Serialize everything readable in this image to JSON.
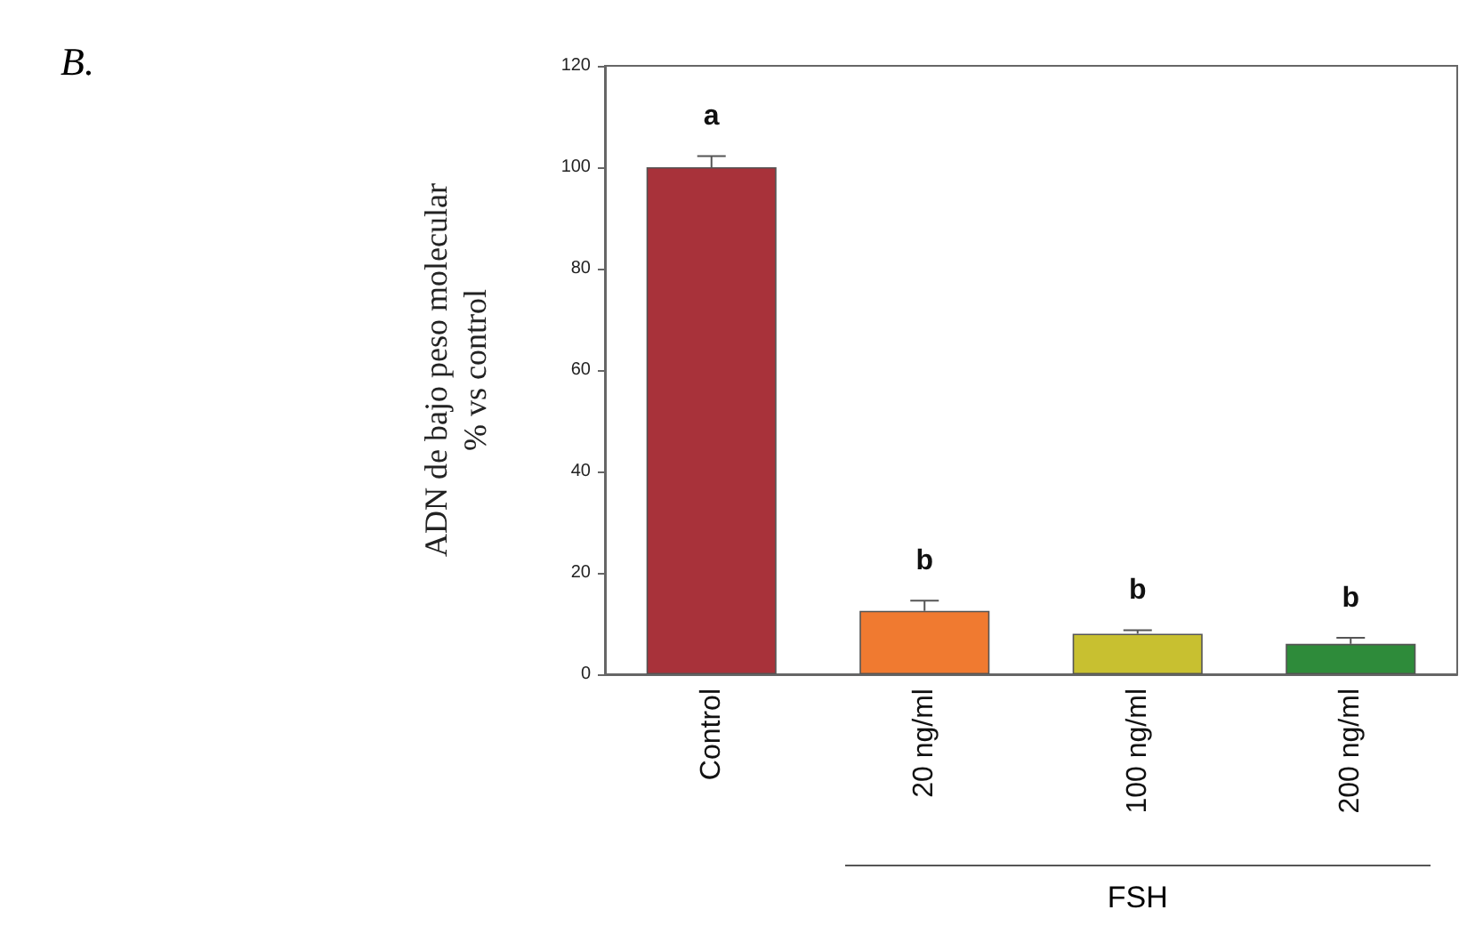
{
  "chart_data": {
    "type": "bar",
    "title": "B.",
    "ylabel": "ADN de bajo peso molecular\n% vs control",
    "categories": [
      "Control",
      "20 ng/ml",
      "100 ng/ml",
      "200 ng/ml"
    ],
    "values": [
      100,
      12.5,
      8,
      6
    ],
    "errors": [
      2.2,
      2,
      0.7,
      1.2
    ],
    "colors": [
      "#a8323a",
      "#f07a30",
      "#c8c030",
      "#2e8b3a"
    ],
    "ylim": [
      0,
      120
    ],
    "yticks": [
      0,
      20,
      40,
      60,
      80,
      100,
      120
    ],
    "grid": false,
    "annotations": [
      "a",
      "b",
      "b",
      "b",
      "FSH"
    ]
  }
}
